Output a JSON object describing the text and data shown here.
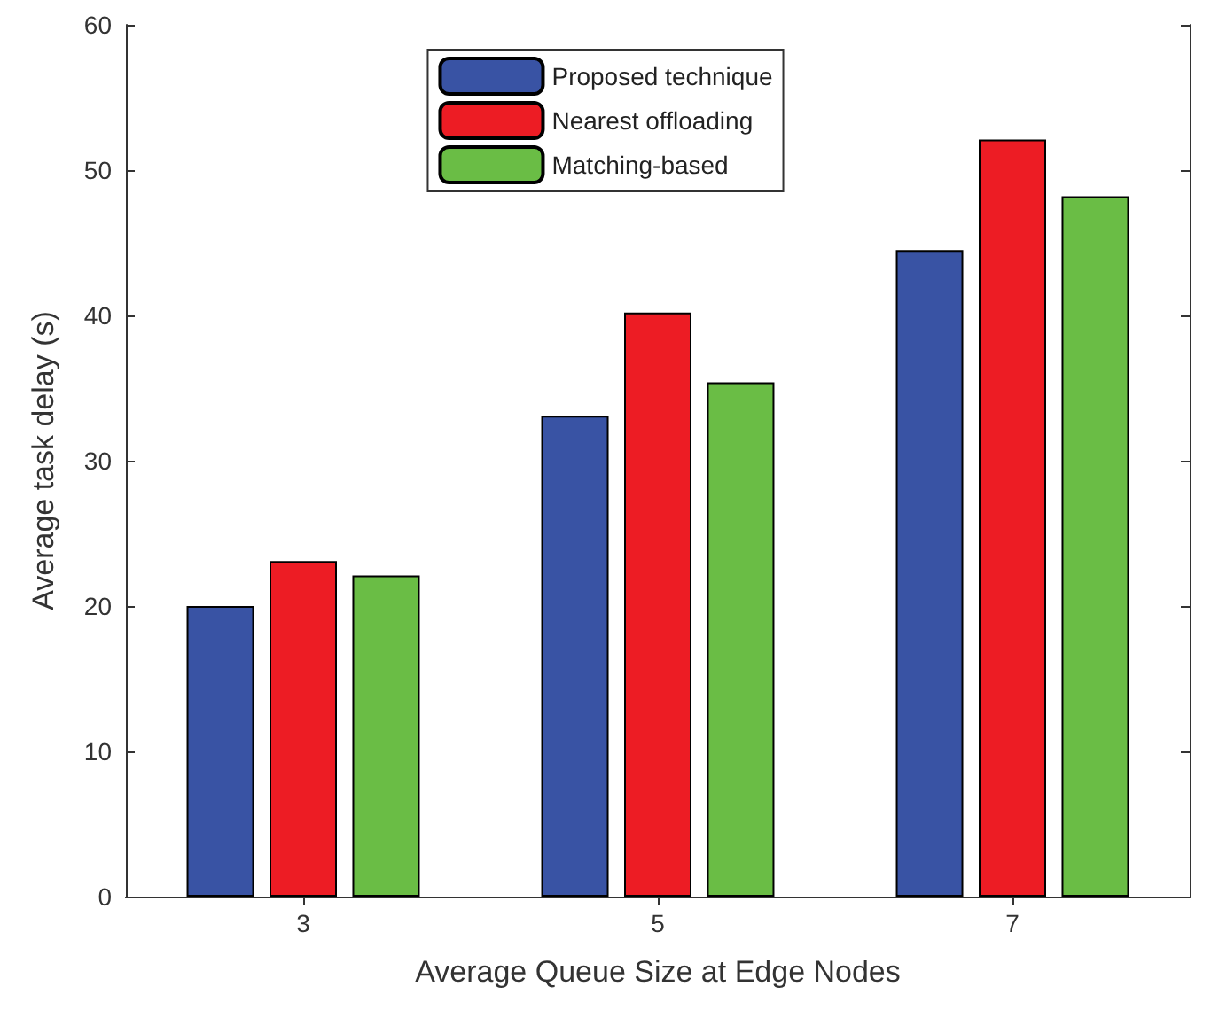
{
  "chart_data": {
    "type": "bar",
    "xlabel": "Average Queue Size at Edge Nodes",
    "ylabel": "Average task delay (s)",
    "categories": [
      "3",
      "5",
      "7"
    ],
    "series": [
      {
        "name": "Proposed technique",
        "color": "#3953a4",
        "values": [
          20.0,
          33.1,
          44.5
        ]
      },
      {
        "name": "Nearest offloading",
        "color": "#ed1c24",
        "values": [
          23.1,
          40.2,
          52.1
        ]
      },
      {
        "name": "Matching-based",
        "color": "#6abd45",
        "values": [
          22.1,
          35.4,
          48.2
        ]
      }
    ],
    "ylim": [
      0,
      60
    ],
    "yticks": [
      0,
      10,
      20,
      30,
      40,
      50,
      60
    ],
    "grid": false,
    "legend": "top"
  }
}
